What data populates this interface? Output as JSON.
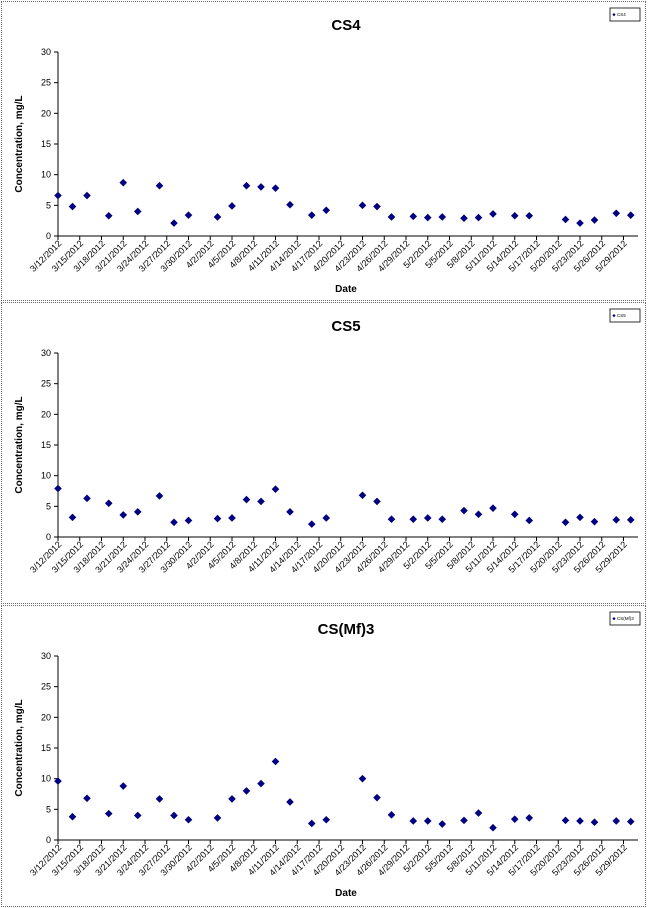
{
  "chart_data": [
    {
      "type": "scatter",
      "title": "CS4",
      "xlabel": "Date",
      "ylabel": "Concentration, mg/L",
      "ylim": [
        0,
        30
      ],
      "yticks": [
        "0",
        "5",
        "10",
        "15",
        "20",
        "25",
        "30"
      ],
      "xlim": [
        "3/12/2012",
        "5/31/2012"
      ],
      "xticks": [
        "3/12/2012",
        "3/15/2012",
        "3/18/2012",
        "3/21/2012",
        "3/24/2012",
        "3/27/2012",
        "3/30/2012",
        "4/2/2012",
        "4/5/2012",
        "4/8/2012",
        "4/11/2012",
        "4/14/2012",
        "4/17/2012",
        "4/20/2012",
        "4/23/2012",
        "4/26/2012",
        "4/29/2012",
        "5/2/2012",
        "5/5/2012",
        "5/8/2012",
        "5/11/2012",
        "5/14/2012",
        "5/17/2012",
        "5/20/2012",
        "5/23/2012",
        "5/26/2012",
        "5/29/2012"
      ],
      "legend": "top-right",
      "color": "#000080",
      "series": [
        {
          "name": "CS4",
          "points": [
            [
              "3/12/2012",
              6.6
            ],
            [
              "3/14/2012",
              4.8
            ],
            [
              "3/16/2012",
              6.6
            ],
            [
              "3/19/2012",
              3.3
            ],
            [
              "3/21/2012",
              8.7
            ],
            [
              "3/23/2012",
              4.0
            ],
            [
              "3/26/2012",
              8.2
            ],
            [
              "3/28/2012",
              2.1
            ],
            [
              "3/30/2012",
              3.4
            ],
            [
              "4/3/2012",
              3.1
            ],
            [
              "4/5/2012",
              4.9
            ],
            [
              "4/7/2012",
              8.2
            ],
            [
              "4/9/2012",
              8.0
            ],
            [
              "4/11/2012",
              7.8
            ],
            [
              "4/13/2012",
              5.1
            ],
            [
              "4/16/2012",
              3.4
            ],
            [
              "4/18/2012",
              4.2
            ],
            [
              "4/23/2012",
              5.0
            ],
            [
              "4/25/2012",
              4.8
            ],
            [
              "4/27/2012",
              3.1
            ],
            [
              "4/30/2012",
              3.2
            ],
            [
              "5/2/2012",
              3.0
            ],
            [
              "5/4/2012",
              3.1
            ],
            [
              "5/7/2012",
              2.9
            ],
            [
              "5/9/2012",
              3.0
            ],
            [
              "5/11/2012",
              3.6
            ],
            [
              "5/14/2012",
              3.3
            ],
            [
              "5/16/2012",
              3.3
            ],
            [
              "5/21/2012",
              2.7
            ],
            [
              "5/23/2012",
              2.1
            ],
            [
              "5/25/2012",
              2.6
            ],
            [
              "5/28/2012",
              3.7
            ],
            [
              "5/30/2012",
              3.4
            ]
          ]
        }
      ]
    },
    {
      "type": "scatter",
      "title": "CS5",
      "xlabel": "",
      "ylabel": "Concentration, mg/L",
      "ylim": [
        0,
        30
      ],
      "yticks": [
        "0",
        "5",
        "10",
        "15",
        "20",
        "25",
        "30"
      ],
      "xlim": [
        "3/12/2012",
        "5/31/2012"
      ],
      "xticks": [
        "3/12/2012",
        "3/15/2012",
        "3/18/2012",
        "3/21/2012",
        "3/24/2012",
        "3/27/2012",
        "3/30/2012",
        "4/2/2012",
        "4/5/2012",
        "4/8/2012",
        "4/11/2012",
        "4/14/2012",
        "4/17/2012",
        "4/20/2012",
        "4/23/2012",
        "4/26/2012",
        "4/29/2012",
        "5/2/2012",
        "5/5/2012",
        "5/8/2012",
        "5/11/2012",
        "5/14/2012",
        "5/17/2012",
        "5/20/2012",
        "5/23/2012",
        "5/26/2012",
        "5/29/2012"
      ],
      "legend": "top-right",
      "color": "#000080",
      "series": [
        {
          "name": "CS5",
          "points": [
            [
              "3/12/2012",
              7.9
            ],
            [
              "3/14/2012",
              3.2
            ],
            [
              "3/16/2012",
              6.3
            ],
            [
              "3/19/2012",
              5.5
            ],
            [
              "3/21/2012",
              3.6
            ],
            [
              "3/23/2012",
              4.1
            ],
            [
              "3/26/2012",
              6.7
            ],
            [
              "3/28/2012",
              2.4
            ],
            [
              "3/30/2012",
              2.7
            ],
            [
              "4/3/2012",
              3.0
            ],
            [
              "4/5/2012",
              3.1
            ],
            [
              "4/7/2012",
              6.1
            ],
            [
              "4/9/2012",
              5.8
            ],
            [
              "4/11/2012",
              7.8
            ],
            [
              "4/13/2012",
              4.1
            ],
            [
              "4/16/2012",
              2.1
            ],
            [
              "4/18/2012",
              3.1
            ],
            [
              "4/23/2012",
              6.8
            ],
            [
              "4/25/2012",
              5.8
            ],
            [
              "4/27/2012",
              2.9
            ],
            [
              "4/30/2012",
              2.9
            ],
            [
              "5/2/2012",
              3.1
            ],
            [
              "5/4/2012",
              2.9
            ],
            [
              "5/7/2012",
              4.3
            ],
            [
              "5/9/2012",
              3.7
            ],
            [
              "5/11/2012",
              4.7
            ],
            [
              "5/14/2012",
              3.7
            ],
            [
              "5/16/2012",
              2.7
            ],
            [
              "5/21/2012",
              2.4
            ],
            [
              "5/23/2012",
              3.2
            ],
            [
              "5/25/2012",
              2.5
            ],
            [
              "5/28/2012",
              2.8
            ],
            [
              "5/30/2012",
              2.8
            ]
          ]
        }
      ]
    },
    {
      "type": "scatter",
      "title": "CS(Mf)3",
      "xlabel": "Date",
      "ylabel": "Concentration, mg/L",
      "ylim": [
        0,
        30
      ],
      "yticks": [
        "0",
        "5",
        "10",
        "15",
        "20",
        "25",
        "30"
      ],
      "xlim": [
        "3/12/2012",
        "5/31/2012"
      ],
      "xticks": [
        "3/12/2012",
        "3/15/2012",
        "3/18/2012",
        "3/21/2012",
        "3/24/2012",
        "3/27/2012",
        "3/30/2012",
        "4/2/2012",
        "4/5/2012",
        "4/8/2012",
        "4/11/2012",
        "4/14/2012",
        "4/17/2012",
        "4/20/2012",
        "4/23/2012",
        "4/26/2012",
        "4/29/2012",
        "5/2/2012",
        "5/5/2012",
        "5/8/2012",
        "5/11/2012",
        "5/14/2012",
        "5/17/2012",
        "5/20/2012",
        "5/23/2012",
        "5/26/2012",
        "5/29/2012"
      ],
      "legend": "top-right",
      "color": "#000080",
      "series": [
        {
          "name": "CS(Mf)3",
          "points": [
            [
              "3/12/2012",
              9.6
            ],
            [
              "3/14/2012",
              3.8
            ],
            [
              "3/16/2012",
              6.8
            ],
            [
              "3/19/2012",
              4.3
            ],
            [
              "3/21/2012",
              8.8
            ],
            [
              "3/23/2012",
              4.0
            ],
            [
              "3/26/2012",
              6.7
            ],
            [
              "3/28/2012",
              4.0
            ],
            [
              "3/30/2012",
              3.3
            ],
            [
              "4/3/2012",
              3.6
            ],
            [
              "4/5/2012",
              6.7
            ],
            [
              "4/7/2012",
              8.0
            ],
            [
              "4/9/2012",
              9.2
            ],
            [
              "4/11/2012",
              12.8
            ],
            [
              "4/13/2012",
              6.2
            ],
            [
              "4/16/2012",
              2.7
            ],
            [
              "4/18/2012",
              3.3
            ],
            [
              "4/23/2012",
              10.0
            ],
            [
              "4/25/2012",
              6.9
            ],
            [
              "4/27/2012",
              4.1
            ],
            [
              "4/30/2012",
              3.1
            ],
            [
              "5/2/2012",
              3.1
            ],
            [
              "5/4/2012",
              2.6
            ],
            [
              "5/7/2012",
              3.2
            ],
            [
              "5/9/2012",
              4.4
            ],
            [
              "5/11/2012",
              2.0
            ],
            [
              "5/14/2012",
              3.4
            ],
            [
              "5/16/2012",
              3.6
            ],
            [
              "5/21/2012",
              3.2
            ],
            [
              "5/23/2012",
              3.1
            ],
            [
              "5/25/2012",
              2.9
            ],
            [
              "5/28/2012",
              3.1
            ],
            [
              "5/30/2012",
              3.0
            ]
          ]
        }
      ]
    }
  ]
}
